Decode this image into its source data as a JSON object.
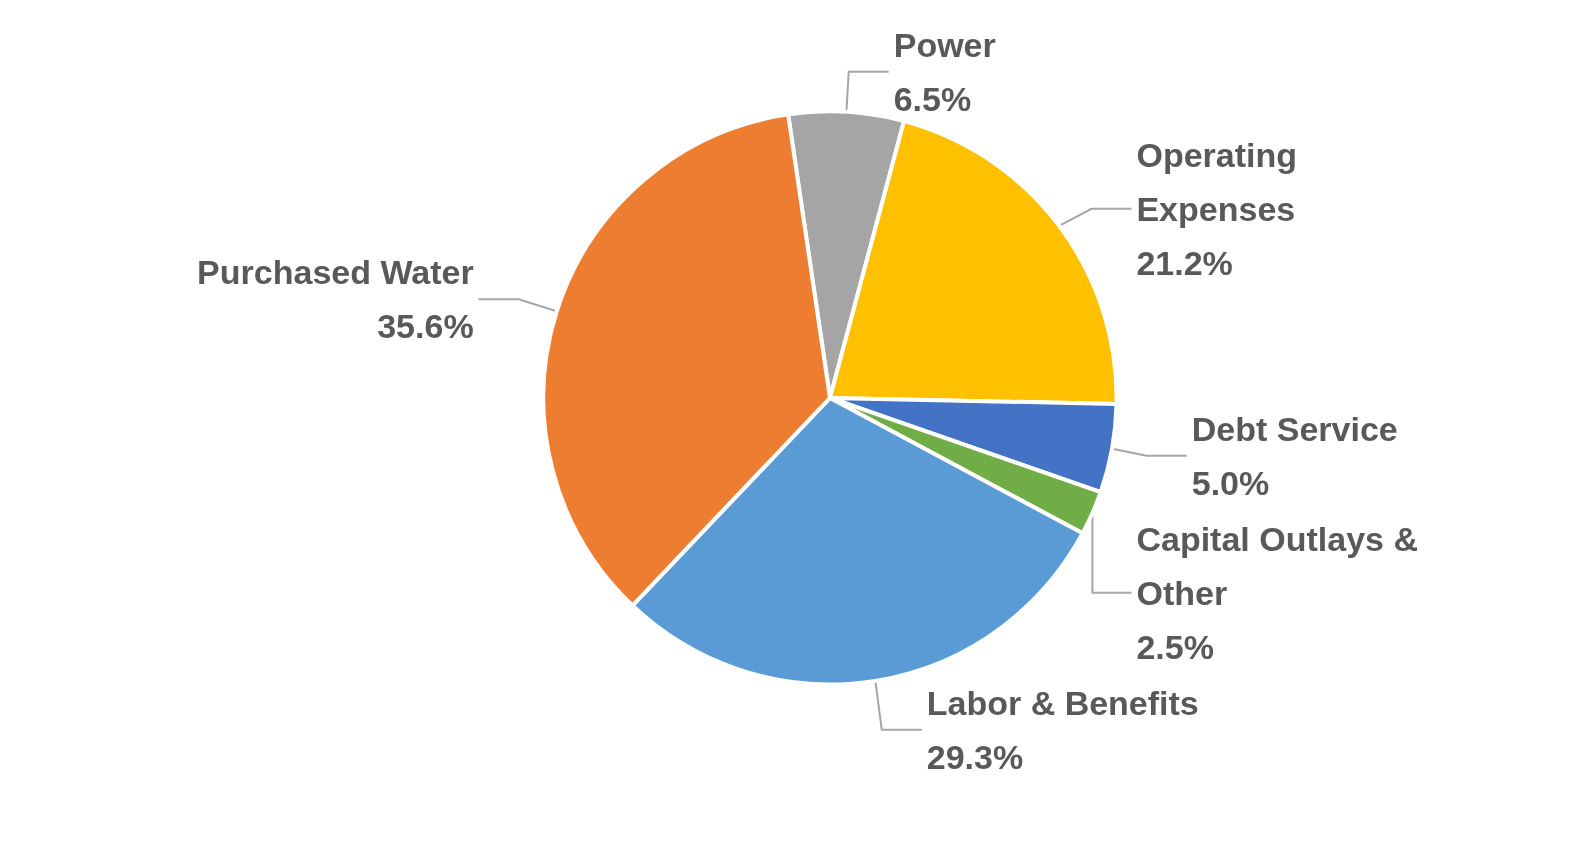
{
  "chart_data": {
    "type": "pie",
    "categories": [
      "Power",
      "Operating Expenses",
      "Debt Service",
      "Capital Outlays & Other",
      "Labor & Benefits",
      "Purchased Water"
    ],
    "values": [
      6.5,
      21.2,
      5.0,
      2.5,
      29.3,
      35.6
    ],
    "value_labels": [
      "6.5%",
      "21.2%",
      "5.0%",
      "2.5%",
      "29.3%",
      "35.6%"
    ],
    "colors": [
      "#a5a5a5",
      "#ffc000",
      "#4472c4",
      "#70ad47",
      "#5b9bd5",
      "#ed7d31"
    ]
  }
}
